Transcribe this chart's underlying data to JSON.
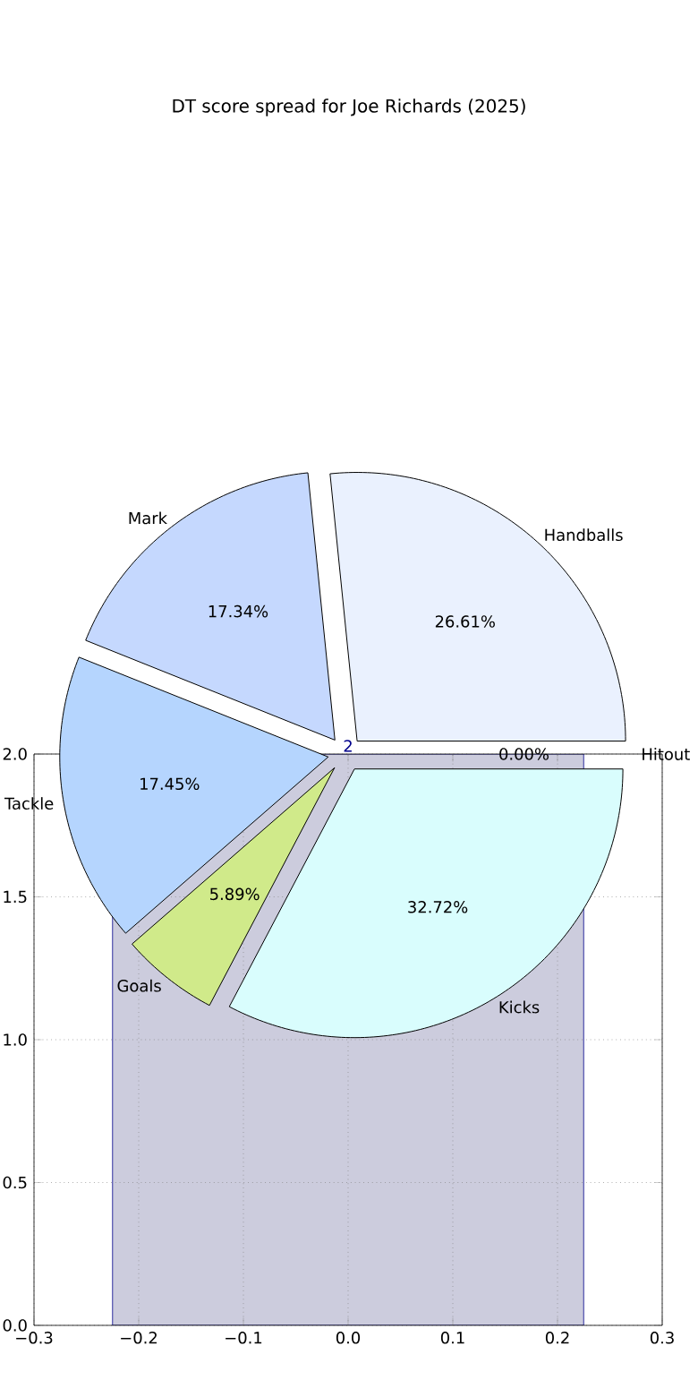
{
  "chart_data": [
    {
      "type": "pie",
      "title": "DT score spread for Joe Richards (2025)",
      "categories": [
        "Hitout",
        "Handballs",
        "Mark",
        "Tackle",
        "Goals",
        "Kicks"
      ],
      "values": [
        0.0,
        26.61,
        17.34,
        17.45,
        5.89,
        32.72
      ],
      "colors": [
        "#e8e8f8",
        "#eaf1fe",
        "#c5d8fe",
        "#b5d5fe",
        "#d0ea8a",
        "#d9fdfd"
      ],
      "value_labels": [
        "0.00%",
        "26.61%",
        "17.34%",
        "17.45%",
        "5.89%",
        "32.72%"
      ]
    },
    {
      "type": "histogram",
      "bins": [
        -0.225,
        0.225
      ],
      "values": [
        2.0
      ],
      "color": "#ccccdd",
      "value_labels": [
        "2"
      ],
      "xlim": [
        -0.3,
        0.3
      ],
      "ylim": [
        0,
        2.0
      ],
      "xticks": [
        {
          "value": -0.3,
          "label": "−0.3"
        },
        {
          "value": -0.2,
          "label": "−0.2"
        },
        {
          "value": -0.1,
          "label": "−0.1"
        },
        {
          "value": 0,
          "label": "0.0"
        },
        {
          "value": 0.1,
          "label": "0.1"
        },
        {
          "value": 0.2,
          "label": "0.2"
        },
        {
          "value": 0.3,
          "label": "0.3"
        }
      ],
      "yticks": [
        {
          "value": 0,
          "label": "0.0"
        },
        {
          "value": 0.5,
          "label": "0.5"
        },
        {
          "value": 1.0,
          "label": "1.0"
        },
        {
          "value": 1.5,
          "label": "1.5"
        },
        {
          "value": 2.0,
          "label": "2.0"
        }
      ],
      "grid": true
    }
  ]
}
